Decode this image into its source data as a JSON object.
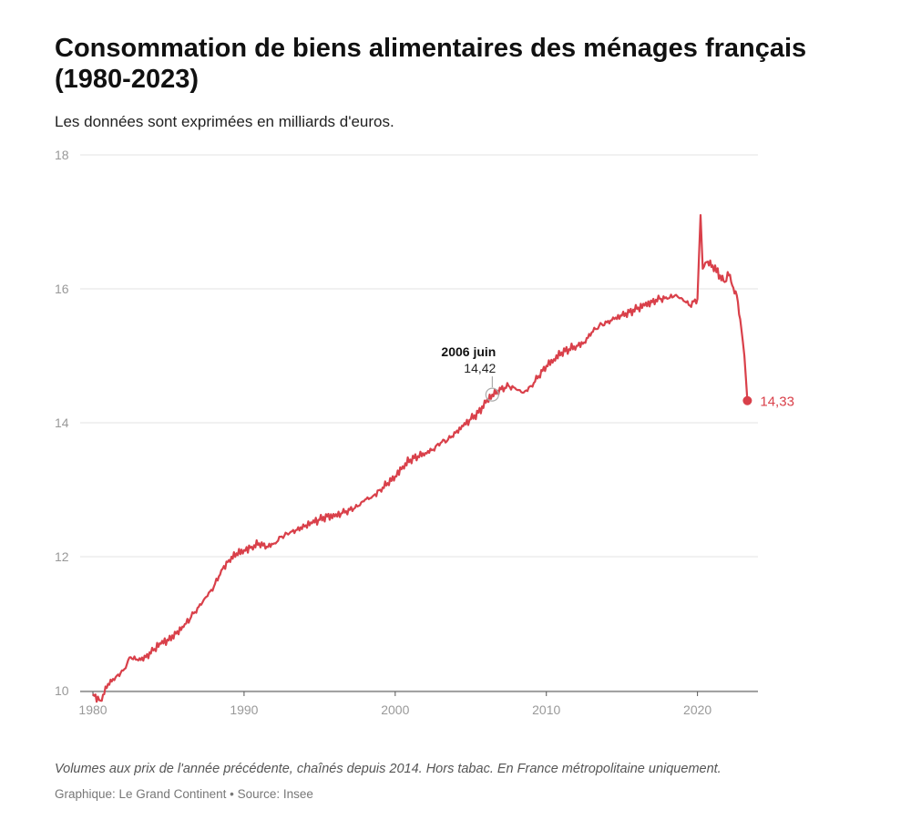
{
  "chart_data": {
    "type": "line",
    "title": "Consommation de biens alimentaires des ménages français (1980-2023)",
    "subtitle": "Les données sont exprimées en milliards d'euros.",
    "xlabel": "",
    "ylabel": "",
    "xlim": [
      1980,
      2024
    ],
    "ylim": [
      10,
      18
    ],
    "xticks": [
      "1980",
      "1990",
      "2000",
      "2010",
      "2020"
    ],
    "yticks": [
      "10",
      "12",
      "14",
      "16",
      "18"
    ],
    "grid": true,
    "series": [
      {
        "name": "Consommation de biens alimentaires",
        "color": "#d9404a",
        "x": [
          1980.0,
          1980.5,
          1981.0,
          1981.5,
          1982.0,
          1982.5,
          1983.0,
          1983.5,
          1984.0,
          1984.5,
          1985.0,
          1985.5,
          1986.0,
          1986.5,
          1987.0,
          1987.5,
          1988.0,
          1988.5,
          1989.0,
          1989.5,
          1990.0,
          1990.5,
          1991.0,
          1991.5,
          1992.0,
          1992.5,
          1993.0,
          1993.5,
          1994.0,
          1994.5,
          1995.0,
          1995.5,
          1996.0,
          1996.5,
          1997.0,
          1997.5,
          1998.0,
          1998.5,
          1999.0,
          1999.5,
          2000.0,
          2000.5,
          2001.0,
          2001.5,
          2002.0,
          2002.5,
          2003.0,
          2003.5,
          2004.0,
          2004.5,
          2005.0,
          2005.5,
          2006.0,
          2006.42,
          2007.0,
          2007.5,
          2008.0,
          2008.5,
          2009.0,
          2009.5,
          2010.0,
          2010.5,
          2011.0,
          2011.5,
          2012.0,
          2012.5,
          2013.0,
          2013.5,
          2014.0,
          2014.5,
          2015.0,
          2015.5,
          2016.0,
          2016.5,
          2017.0,
          2017.5,
          2018.0,
          2018.5,
          2019.0,
          2019.5,
          2020.0,
          2020.2,
          2020.35,
          2020.6,
          2021.0,
          2021.5,
          2021.8,
          2022.0,
          2022.3,
          2022.6,
          2022.9,
          2023.1,
          2023.3
        ],
        "values": [
          9.95,
          9.85,
          10.1,
          10.2,
          10.3,
          10.5,
          10.45,
          10.5,
          10.6,
          10.7,
          10.75,
          10.85,
          10.95,
          11.1,
          11.25,
          11.4,
          11.55,
          11.8,
          11.95,
          12.05,
          12.1,
          12.15,
          12.2,
          12.15,
          12.2,
          12.3,
          12.35,
          12.4,
          12.45,
          12.5,
          12.55,
          12.6,
          12.6,
          12.65,
          12.7,
          12.75,
          12.85,
          12.9,
          13.0,
          13.1,
          13.2,
          13.35,
          13.45,
          13.5,
          13.55,
          13.6,
          13.7,
          13.75,
          13.85,
          13.95,
          14.05,
          14.15,
          14.3,
          14.42,
          14.5,
          14.55,
          14.5,
          14.45,
          14.55,
          14.7,
          14.85,
          14.95,
          15.05,
          15.1,
          15.15,
          15.2,
          15.35,
          15.45,
          15.5,
          15.55,
          15.6,
          15.65,
          15.7,
          15.75,
          15.8,
          15.85,
          15.85,
          15.9,
          15.85,
          15.75,
          15.85,
          17.1,
          16.3,
          16.4,
          16.35,
          16.2,
          16.1,
          16.25,
          16.05,
          15.9,
          15.4,
          15.0,
          14.33
        ]
      }
    ],
    "annotation": {
      "label": "2006 juin",
      "value_text": "14,42",
      "x": 2006.42,
      "y": 14.42
    },
    "end_label": {
      "text": "14,33",
      "x": 2023.3,
      "y": 14.33
    }
  },
  "footer": {
    "note": "Volumes aux prix de l'année précédente, chaînés depuis 2014. Hors tabac. En France métropolitaine uniquement.",
    "credit": "Graphique: Le Grand Continent • Source: Insee"
  }
}
